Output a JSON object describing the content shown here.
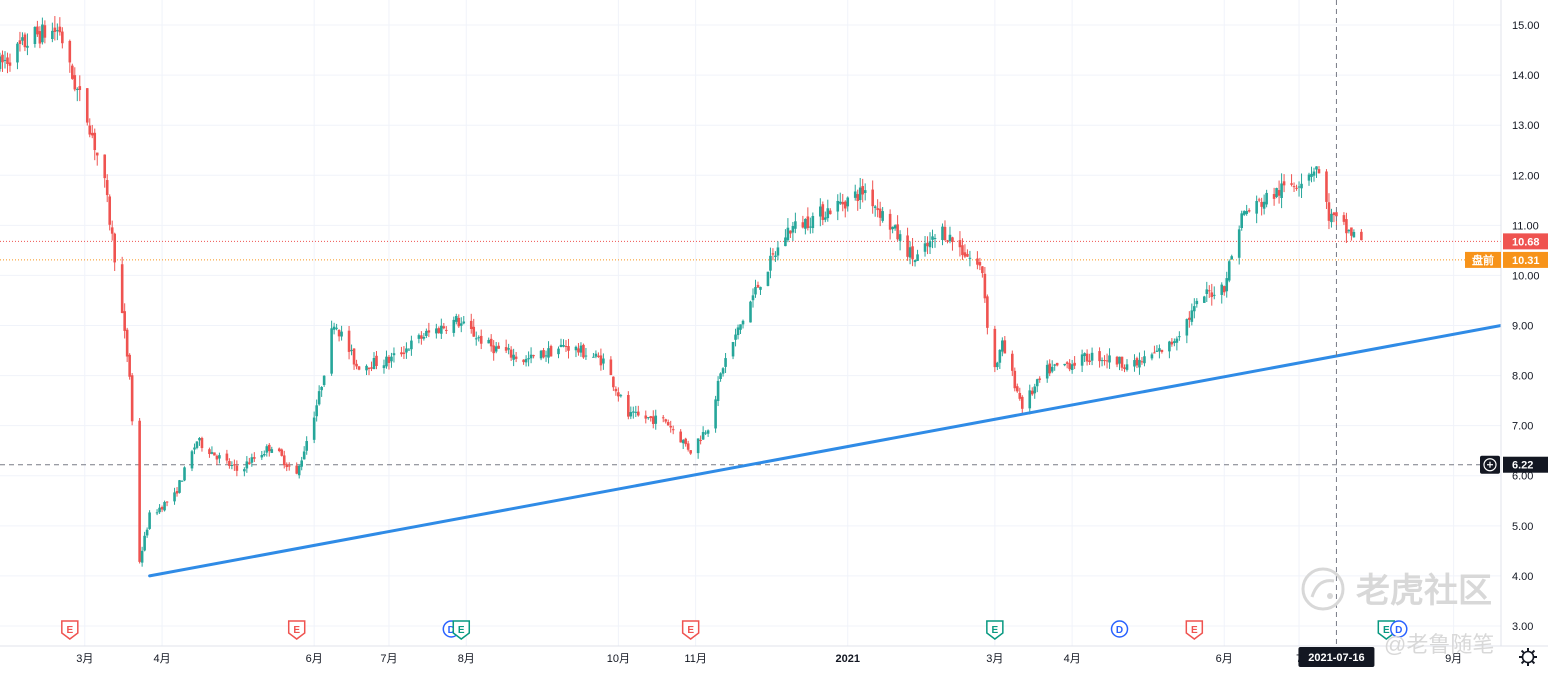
{
  "chart_data": {
    "type": "candlestick",
    "price_axis": {
      "min": 2.6,
      "max": 15.5,
      "ticks": [
        "15.00",
        "14.00",
        "13.00",
        "12.00",
        "11.00",
        "10.00",
        "9.00",
        "8.00",
        "7.00",
        "6.00",
        "5.00",
        "4.00",
        "3.00"
      ]
    },
    "time_axis": {
      "start": "2020-01-27",
      "end": "2021-09-20",
      "labels": [
        {
          "text": "3月",
          "date": "2020-03-01"
        },
        {
          "text": "4月",
          "date": "2020-04-01"
        },
        {
          "text": "6月",
          "date": "2020-06-01"
        },
        {
          "text": "7月",
          "date": "2020-07-01"
        },
        {
          "text": "8月",
          "date": "2020-08-01"
        },
        {
          "text": "10月",
          "date": "2020-10-01"
        },
        {
          "text": "11月",
          "date": "2020-11-01"
        },
        {
          "text": "2021",
          "date": "2021-01-01",
          "year": true
        },
        {
          "text": "3月",
          "date": "2021-03-01"
        },
        {
          "text": "4月",
          "date": "2021-04-01"
        },
        {
          "text": "6月",
          "date": "2021-06-01"
        },
        {
          "text": "7",
          "date": "2021-07-01"
        },
        {
          "text": "9月",
          "date": "2021-09-01"
        }
      ]
    },
    "price_path": [
      [
        "2020-01-27",
        14.2
      ],
      [
        "2020-02-10",
        14.8
      ],
      [
        "2020-02-20",
        14.9
      ],
      [
        "2020-02-24",
        14.1
      ],
      [
        "2020-03-03",
        13.0
      ],
      [
        "2020-03-09",
        11.8
      ],
      [
        "2020-03-13",
        10.4
      ],
      [
        "2020-03-19",
        8.0
      ],
      [
        "2020-03-23",
        4.3
      ],
      [
        "2020-03-27",
        5.2
      ],
      [
        "2020-04-06",
        5.6
      ],
      [
        "2020-04-15",
        6.7
      ],
      [
        "2020-05-01",
        6.1
      ],
      [
        "2020-05-15",
        6.6
      ],
      [
        "2020-05-25",
        6.0
      ],
      [
        "2020-06-03",
        7.6
      ],
      [
        "2020-06-09",
        9.1
      ],
      [
        "2020-06-18",
        8.2
      ],
      [
        "2020-07-01",
        8.3
      ],
      [
        "2020-07-15",
        8.8
      ],
      [
        "2020-07-28",
        9.1
      ],
      [
        "2020-08-10",
        8.6
      ],
      [
        "2020-08-25",
        8.3
      ],
      [
        "2020-09-10",
        8.6
      ],
      [
        "2020-09-25",
        8.3
      ],
      [
        "2020-10-05",
        7.2
      ],
      [
        "2020-10-20",
        7.1
      ],
      [
        "2020-10-30",
        6.5
      ],
      [
        "2020-11-06",
        7.0
      ],
      [
        "2020-11-12",
        8.2
      ],
      [
        "2020-11-25",
        9.7
      ],
      [
        "2020-12-08",
        10.9
      ],
      [
        "2020-12-20",
        11.2
      ],
      [
        "2021-01-08",
        11.7
      ],
      [
        "2021-01-18",
        11.0
      ],
      [
        "2021-01-28",
        10.3
      ],
      [
        "2021-02-08",
        10.9
      ],
      [
        "2021-02-18",
        10.4
      ],
      [
        "2021-02-24",
        10.1
      ],
      [
        "2021-02-28",
        8.0
      ],
      [
        "2021-03-04",
        8.6
      ],
      [
        "2021-03-12",
        7.4
      ],
      [
        "2021-03-22",
        8.1
      ],
      [
        "2021-04-10",
        8.4
      ],
      [
        "2021-04-26",
        8.2
      ],
      [
        "2021-05-10",
        8.6
      ],
      [
        "2021-05-24",
        9.6
      ],
      [
        "2021-06-01",
        9.8
      ],
      [
        "2021-06-08",
        11.2
      ],
      [
        "2021-06-20",
        11.6
      ],
      [
        "2021-07-01",
        11.9
      ],
      [
        "2021-07-08",
        12.2
      ],
      [
        "2021-07-13",
        11.2
      ],
      [
        "2021-07-20",
        10.9
      ],
      [
        "2021-07-26",
        10.7
      ]
    ],
    "trendline": {
      "from": {
        "date": "2020-03-27",
        "price": 4.0
      },
      "to": {
        "date": "2021-09-20",
        "price": 9.0
      },
      "color": "#2f8be6"
    },
    "horizontal_lines": [
      {
        "price": 10.68,
        "color": "#ef5350",
        "style": "dotted"
      },
      {
        "price": 10.31,
        "color": "#f7931a",
        "style": "dotted"
      },
      {
        "price": 6.22,
        "color": "#787b86",
        "style": "dashed"
      }
    ],
    "price_labels": [
      {
        "price": 10.68,
        "text": "10.68",
        "color": "#ef5350"
      },
      {
        "price": 10.31,
        "text": "10.31",
        "prefix": "盘前",
        "color": "#f7931a"
      },
      {
        "price": 6.22,
        "text": "6.22",
        "color": "#131722"
      }
    ],
    "crosshair": {
      "date": "2021-07-16",
      "label": "2021-07-16",
      "price": 6.22
    },
    "events": [
      {
        "type": "E",
        "date": "2020-02-24",
        "color": "#ef5350"
      },
      {
        "type": "E",
        "date": "2020-05-25",
        "color": "#ef5350"
      },
      {
        "type": "D",
        "date": "2020-07-26",
        "color": "#2962ff"
      },
      {
        "type": "E",
        "date": "2020-07-30",
        "color": "#089981"
      },
      {
        "type": "E",
        "date": "2020-10-30",
        "color": "#ef5350"
      },
      {
        "type": "E",
        "date": "2021-03-01",
        "color": "#089981"
      },
      {
        "type": "D",
        "date": "2021-04-20",
        "color": "#2962ff"
      },
      {
        "type": "E",
        "date": "2021-05-20",
        "color": "#ef5350"
      },
      {
        "type": "E",
        "date": "2021-08-05",
        "color": "#089981"
      },
      {
        "type": "D",
        "date": "2021-08-10",
        "color": "#2962ff"
      }
    ],
    "colors": {
      "up": "#26a69a",
      "down": "#ef5350"
    },
    "grid": true
  },
  "watermark": {
    "main": "老虎社区",
    "sub": "@老鲁随笔"
  },
  "icons": {
    "settings": "gear-icon",
    "crosshair_add": "plus-circle-icon"
  }
}
